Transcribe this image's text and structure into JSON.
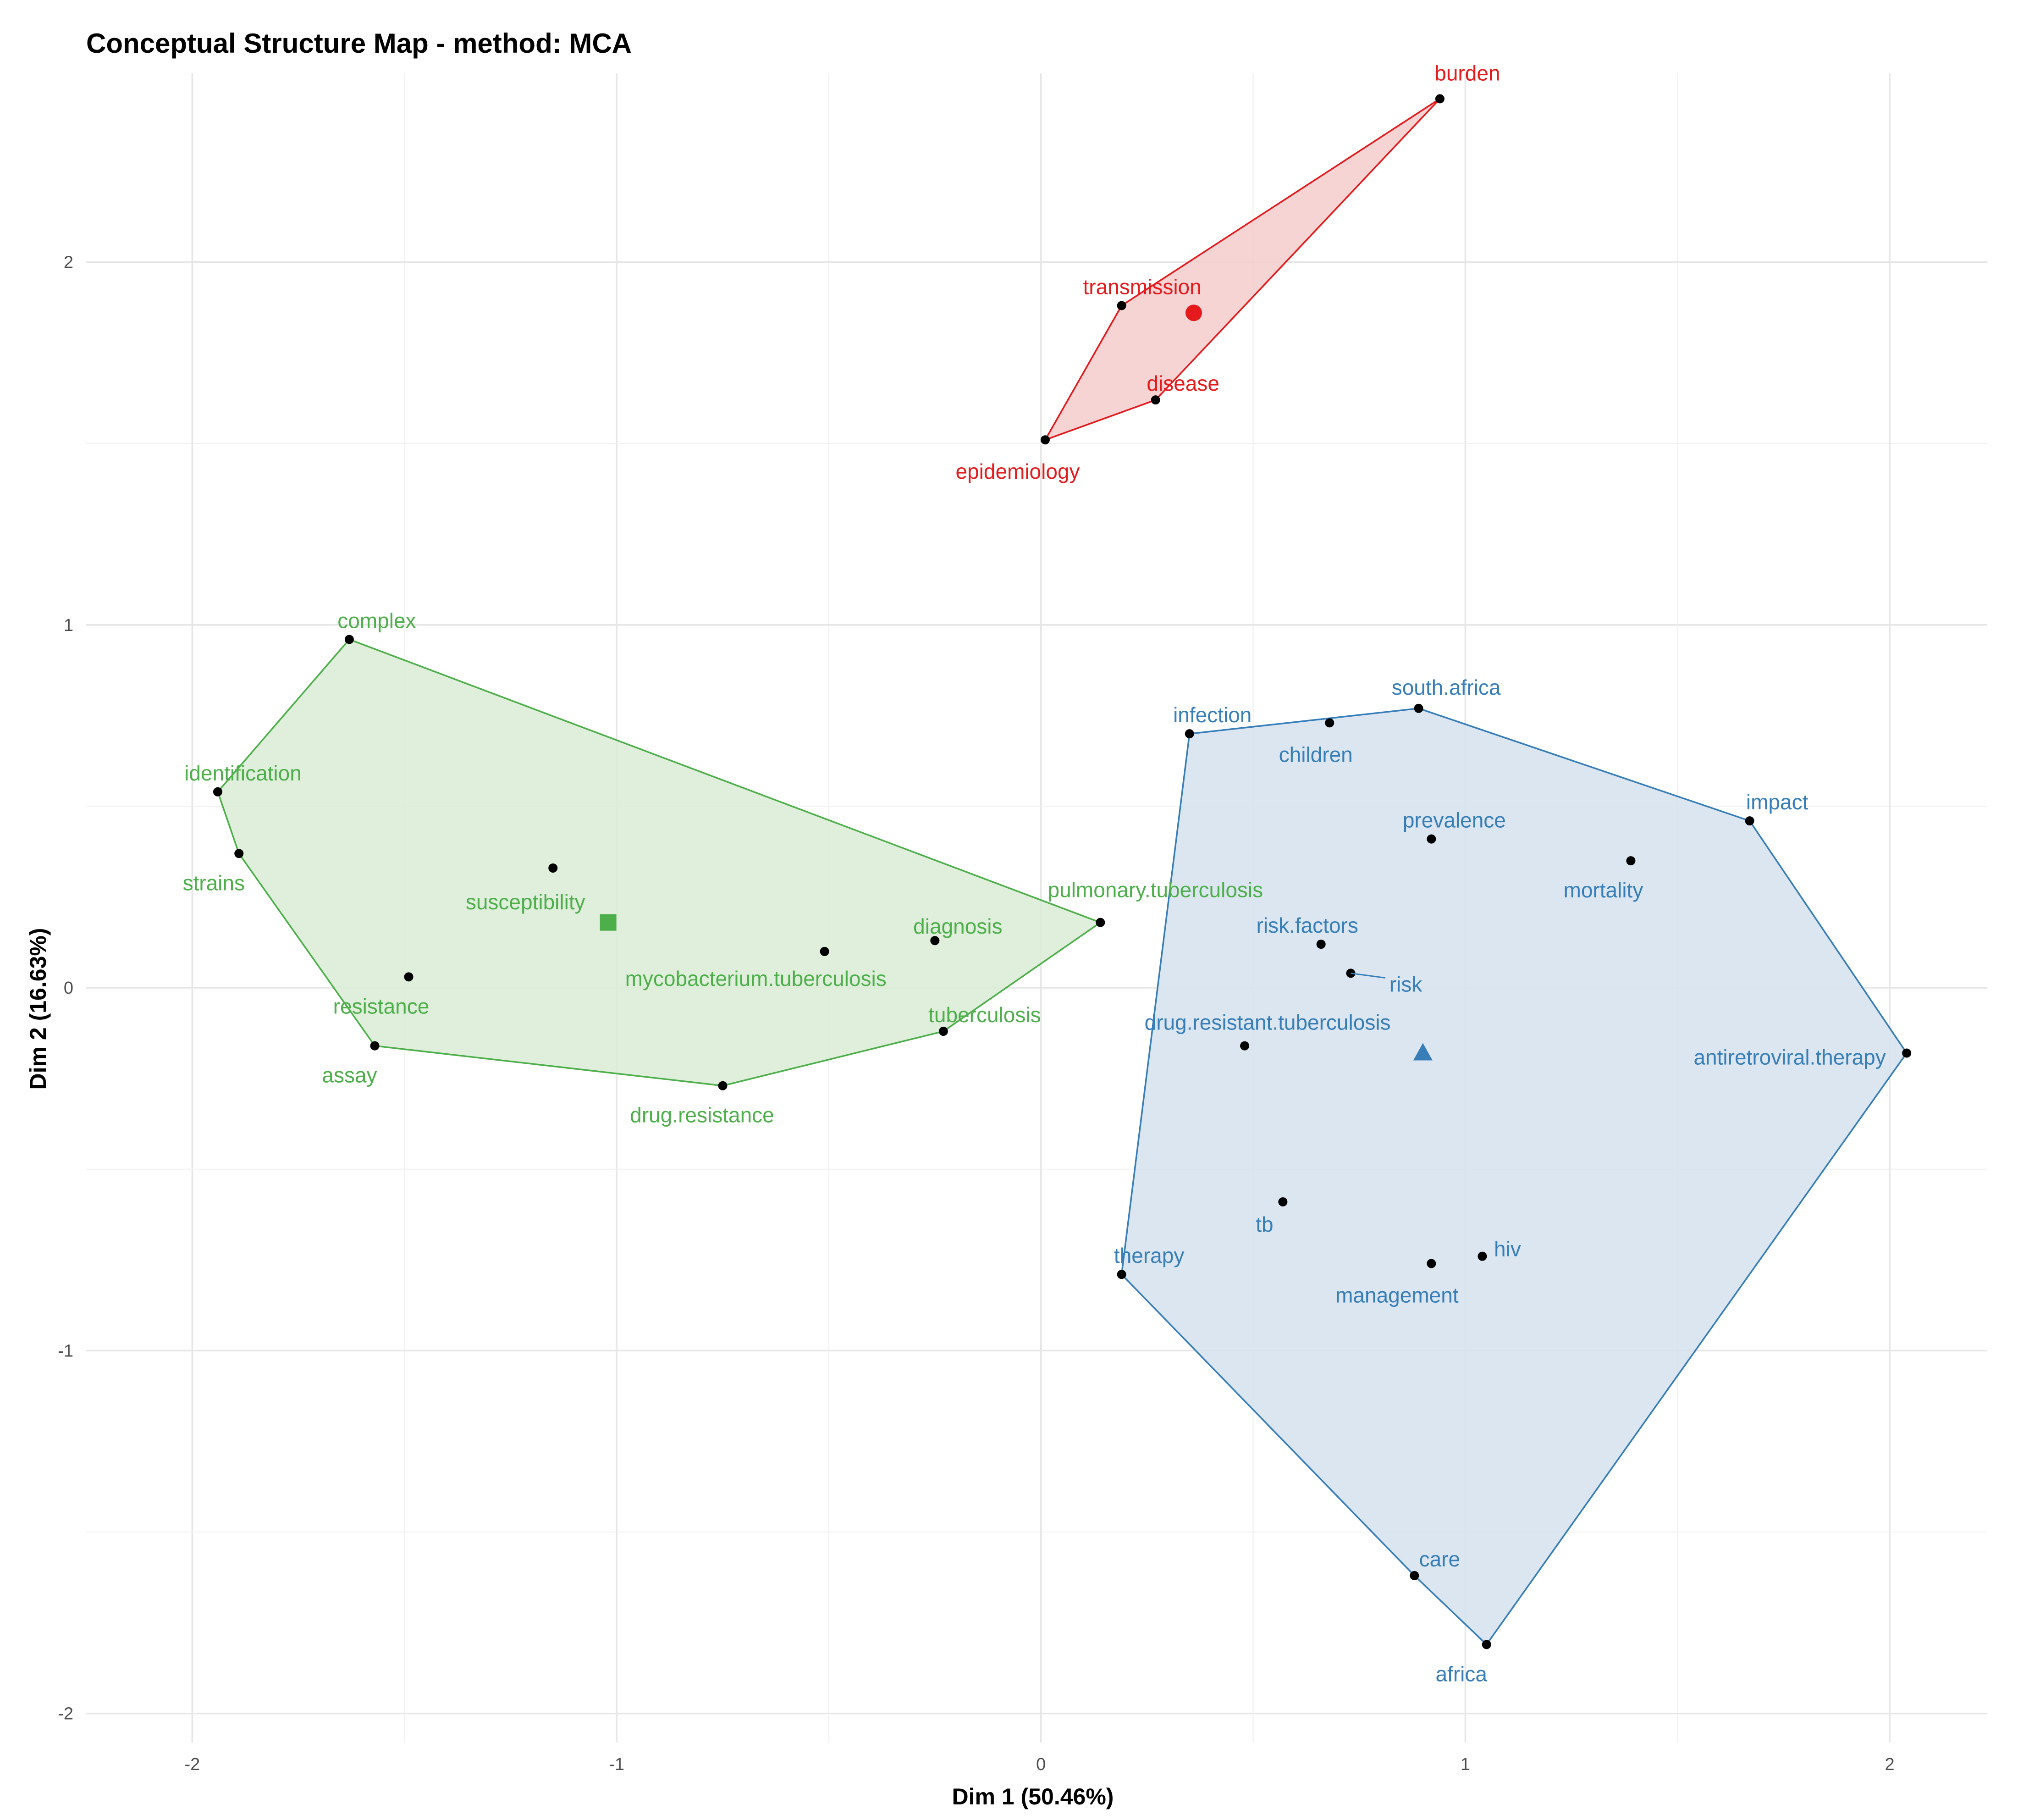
{
  "chart_data": {
    "type": "scatter",
    "title": "Conceptual Structure Map - method: MCA",
    "xlabel": "Dim 1 (50.46%)",
    "ylabel": "Dim 2 (16.63%)",
    "xlim": [
      -2.25,
      2.23
    ],
    "ylim": [
      -2.08,
      2.52
    ],
    "xticks": [
      -2,
      -1,
      0,
      1,
      2
    ],
    "yticks": [
      -2,
      -1,
      0,
      1,
      2
    ],
    "xtick_labels": [
      "-2",
      "-1",
      "0",
      "1",
      "2"
    ],
    "ytick_labels": [
      "-2",
      "-1",
      "0",
      "1",
      "2"
    ],
    "grid": true,
    "legend": "none",
    "clusters": [
      {
        "color": "#e41a1c",
        "fill": "#f4cccc",
        "centroid": [
          0.36,
          1.86
        ],
        "centroid_marker": "circle",
        "points": [
          {
            "label": "burden",
            "x": 0.94,
            "y": 2.45
          },
          {
            "label": "transmission",
            "x": 0.19,
            "y": 1.88
          },
          {
            "label": "disease",
            "x": 0.27,
            "y": 1.62
          },
          {
            "label": "epidemiology",
            "x": 0.01,
            "y": 1.51
          }
        ]
      },
      {
        "color": "#4daf4a",
        "fill": "#d9ecd5",
        "centroid": [
          -1.02,
          0.18
        ],
        "centroid_marker": "square",
        "points": [
          {
            "label": "complex",
            "x": -1.63,
            "y": 0.96
          },
          {
            "label": "identification",
            "x": -1.94,
            "y": 0.54
          },
          {
            "label": "strains",
            "x": -1.89,
            "y": 0.37
          },
          {
            "label": "susceptibility",
            "x": -1.15,
            "y": 0.33
          },
          {
            "label": "resistance",
            "x": -1.49,
            "y": 0.03
          },
          {
            "label": "assay",
            "x": -1.57,
            "y": -0.16
          },
          {
            "label": "mycobacterium.tuberculosis",
            "x": -0.51,
            "y": 0.1
          },
          {
            "label": "diagnosis",
            "x": -0.25,
            "y": 0.13
          },
          {
            "label": "pulmonary.tuberculosis",
            "x": 0.14,
            "y": 0.18
          },
          {
            "label": "tuberculosis",
            "x": -0.23,
            "y": -0.12
          },
          {
            "label": "drug.resistance",
            "x": -0.75,
            "y": -0.27
          }
        ]
      },
      {
        "color": "#377eb8",
        "fill": "#d5e2ef",
        "centroid": [
          0.9,
          -0.18
        ],
        "centroid_marker": "triangle",
        "points": [
          {
            "label": "infection",
            "x": 0.35,
            "y": 0.7
          },
          {
            "label": "children",
            "x": 0.68,
            "y": 0.73
          },
          {
            "label": "south.africa",
            "x": 0.89,
            "y": 0.77
          },
          {
            "label": "impact",
            "x": 1.67,
            "y": 0.46
          },
          {
            "label": "prevalence",
            "x": 0.92,
            "y": 0.41
          },
          {
            "label": "mortality",
            "x": 1.39,
            "y": 0.35
          },
          {
            "label": "risk.factors",
            "x": 0.66,
            "y": 0.12
          },
          {
            "label": "risk",
            "x": 0.73,
            "y": 0.04
          },
          {
            "label": "drug.resistant.tuberculosis",
            "x": 0.48,
            "y": -0.16
          },
          {
            "label": "antiretroviral.therapy",
            "x": 2.04,
            "y": -0.18
          },
          {
            "label": "tb",
            "x": 0.57,
            "y": -0.59
          },
          {
            "label": "therapy",
            "x": 0.19,
            "y": -0.79
          },
          {
            "label": "hiv",
            "x": 1.04,
            "y": -0.74
          },
          {
            "label": "management",
            "x": 0.92,
            "y": -0.76
          },
          {
            "label": "care",
            "x": 0.88,
            "y": -1.62
          },
          {
            "label": "africa",
            "x": 1.05,
            "y": -1.81
          }
        ]
      }
    ]
  }
}
